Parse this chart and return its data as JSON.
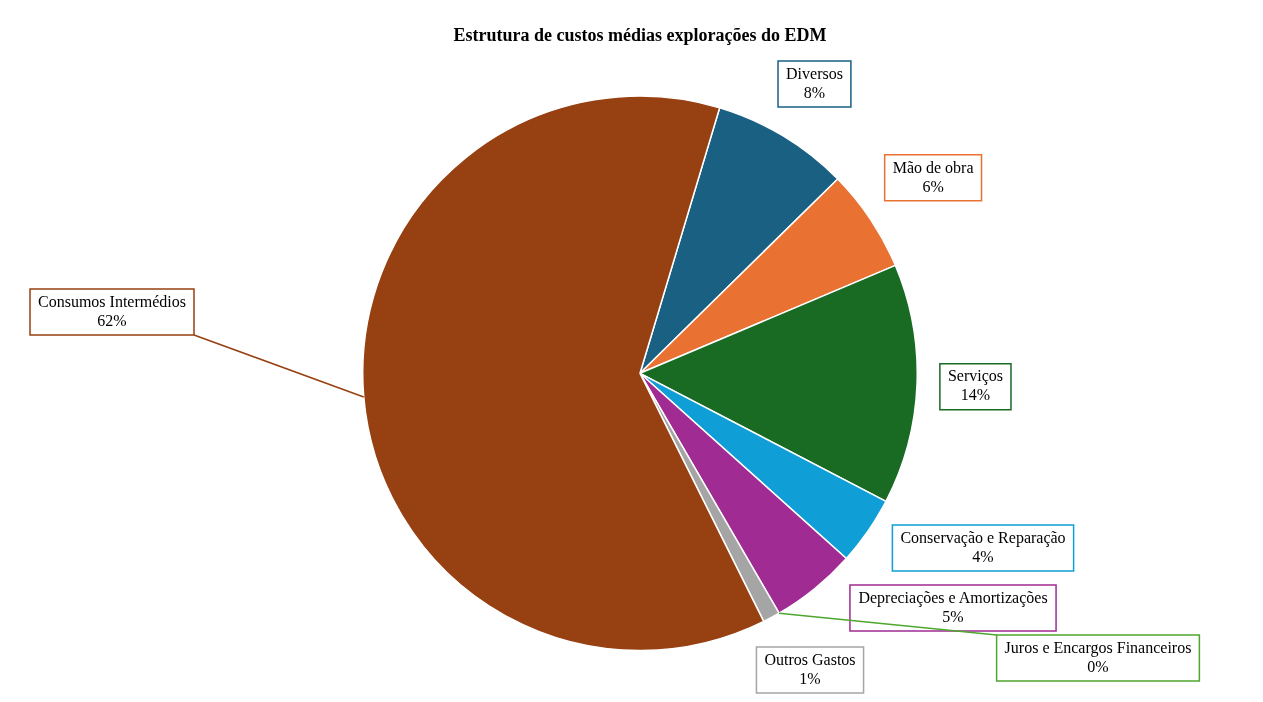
{
  "chart_data": {
    "type": "pie",
    "title": "Estrutura de custos médias explorações do EDM",
    "categories": [
      "Diversos",
      "Mão de obra",
      "Serviços",
      "Conservação e Reparação",
      "Depreciações e Amortizações",
      "Juros e Encargos Financeiros",
      "Outros Gastos",
      "Consumos Intermédios"
    ],
    "values": [
      8,
      6,
      14,
      4,
      5,
      0,
      1,
      62
    ],
    "value_labels": [
      "8%",
      "6%",
      "14%",
      "4%",
      "5%",
      "0%",
      "1%",
      "62%"
    ],
    "colors": [
      "#1a6083",
      "#e97132",
      "#196b24",
      "#0f9ed5",
      "#a02b93",
      "#4ea72e",
      "#a5a5a5",
      "#974011"
    ],
    "legend": false
  }
}
